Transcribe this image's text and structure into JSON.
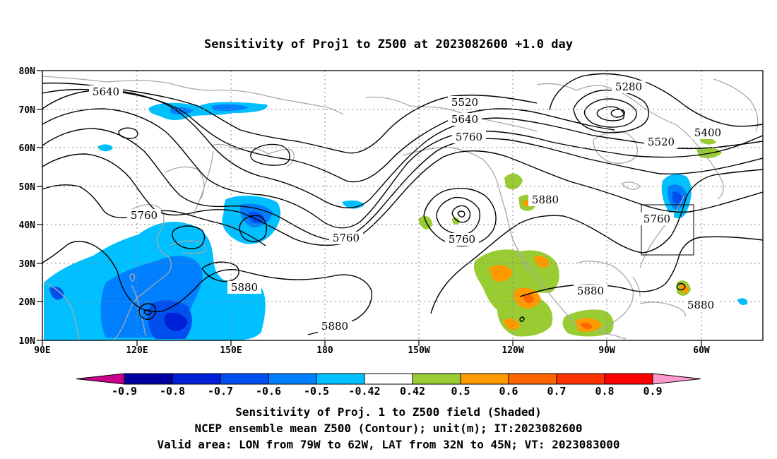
{
  "map": {
    "title": "Sensitivity of Proj1 to Z500 at 2023082600 +1.0 day",
    "lat_labels": [
      "80N",
      "70N",
      "60N",
      "50N",
      "40N",
      "30N",
      "20N",
      "10N"
    ],
    "lon_labels": [
      "90E",
      "120E",
      "150E",
      "180",
      "150W",
      "120W",
      "90W",
      "60W"
    ],
    "projection": "cylindrical equidistant",
    "extent": {
      "lon_west": "90E",
      "lon_east": "40W",
      "lat_south": "10N",
      "lat_north": "80N"
    },
    "grid": "dotted every 30 degrees longitude and 10 degrees latitude",
    "contour_interval_m": 120,
    "contour_labels": [
      {
        "text": "5640",
        "near": "Arctic north of Siberia"
      },
      {
        "text": "5520",
        "near": "Gulf of Alaska / Alaska"
      },
      {
        "text": "5640",
        "near": "Alaska"
      },
      {
        "text": "5760",
        "near": "Pacific Northwest"
      },
      {
        "text": "5280",
        "near": "Hudson Bay low"
      },
      {
        "text": "5400",
        "near": "Labrador"
      },
      {
        "text": "5520",
        "near": "Quebec"
      },
      {
        "text": "5760",
        "near": "western Pacific, Japan"
      },
      {
        "text": "5760",
        "near": "central North Pacific trough"
      },
      {
        "text": "5760",
        "near": "cutoff low off California"
      },
      {
        "text": "5880",
        "near": "Rocky Mountains high"
      },
      {
        "text": "5760",
        "near": "US East Coast"
      },
      {
        "text": "5880",
        "near": "western Pacific subtropics"
      },
      {
        "text": "5880",
        "near": "central Pacific subtropics"
      },
      {
        "text": "5880",
        "near": "Gulf of Mexico"
      },
      {
        "text": "5880",
        "near": "Caribbean"
      }
    ],
    "shading_description": "Negative sensitivity (blue) over East Asia, western Pacific, Kamchatka, northeastern Siberia and New England; positive sensitivity (green to red) over western United States, Mexico, Gulf of Mexico and Caribbean",
    "valid_area_box": {
      "lon": [
        "79W",
        "62W"
      ],
      "lat": [
        "32N",
        "45N"
      ]
    }
  },
  "colorbar": {
    "labels": [
      "-0.9",
      "-0.8",
      "-0.7",
      "-0.6",
      "-0.5",
      "-0.42",
      "0.42",
      "0.5",
      "0.6",
      "0.7",
      "0.8",
      "0.9"
    ],
    "colors": [
      "#c8008c",
      "#0000a0",
      "#0020d8",
      "#0050f0",
      "#0080ff",
      "#00c0ff",
      "#ffffff",
      "#99cc33",
      "#ff9900",
      "#ff6600",
      "#ff3300",
      "#ff0000",
      "#ff99cc"
    ]
  },
  "caption": {
    "line1": "Sensitivity of Proj. 1 to Z500 field (Shaded)",
    "line2": "NCEP ensemble mean Z500 (Contour); unit(m); IT:2023082600",
    "line3": "Valid area: LON from 79W to 62W, LAT from 32N to 45N; VT: 2023083000"
  }
}
